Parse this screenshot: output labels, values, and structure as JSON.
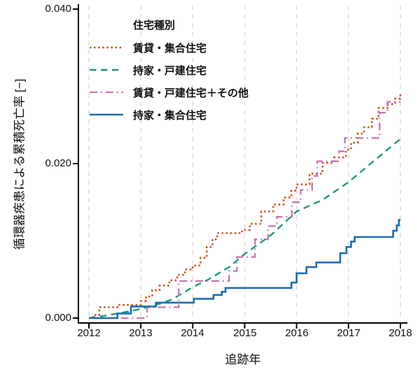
{
  "figure": {
    "background": "#ffffff",
    "axis_color": "#000000",
    "gridline_color": "#d9d9d9"
  },
  "chart_data": {
    "type": "line",
    "subtype": "cumulative-incidence-step",
    "title": "",
    "xlabel": "追跡年",
    "ylabel": "循環器疾患による累積死亡率 [−]",
    "xlim": [
      2012,
      2018
    ],
    "ylim": [
      0,
      0.04
    ],
    "xticks": [
      "2012",
      "2013",
      "2014",
      "2015",
      "2016",
      "2017",
      "2018"
    ],
    "xtick_values": [
      2012,
      2013,
      2014,
      2015,
      2016,
      2017,
      2018
    ],
    "yticks": [
      "0.000",
      "0.020",
      "0.040"
    ],
    "ytick_values": [
      0,
      0.02,
      0.04
    ],
    "grid": "vertical dashed gridlines at each year",
    "legend": {
      "title": "住宅種別",
      "position": "top-left-inside"
    },
    "series": [
      {
        "name": "賃貸・集合住宅",
        "color": "#d2521e",
        "style": "dotted",
        "mode": "step",
        "points": [
          [
            2012.0,
            0.0
          ],
          [
            2012.08,
            0.0004
          ],
          [
            2012.2,
            0.0014
          ],
          [
            2012.55,
            0.0017
          ],
          [
            2013.0,
            0.0022
          ],
          [
            2013.1,
            0.0028
          ],
          [
            2013.22,
            0.0036
          ],
          [
            2013.36,
            0.0042
          ],
          [
            2013.55,
            0.0049
          ],
          [
            2013.7,
            0.0056
          ],
          [
            2013.85,
            0.0063
          ],
          [
            2014.0,
            0.0068
          ],
          [
            2014.15,
            0.0078
          ],
          [
            2014.27,
            0.0092
          ],
          [
            2014.38,
            0.0102
          ],
          [
            2014.47,
            0.011
          ],
          [
            2014.95,
            0.0114
          ],
          [
            2015.1,
            0.0122
          ],
          [
            2015.32,
            0.0138
          ],
          [
            2015.55,
            0.0147
          ],
          [
            2015.75,
            0.0156
          ],
          [
            2015.9,
            0.0165
          ],
          [
            2016.0,
            0.0173
          ],
          [
            2016.25,
            0.0187
          ],
          [
            2016.5,
            0.0201
          ],
          [
            2016.72,
            0.0208
          ],
          [
            2016.95,
            0.0218
          ],
          [
            2017.05,
            0.0227
          ],
          [
            2017.18,
            0.0239
          ],
          [
            2017.3,
            0.0247
          ],
          [
            2017.45,
            0.0258
          ],
          [
            2017.58,
            0.0272
          ],
          [
            2017.75,
            0.0277
          ],
          [
            2017.9,
            0.0284
          ],
          [
            2018.0,
            0.029
          ]
        ]
      },
      {
        "name": "持家・戸建住宅",
        "color": "#1b9e77",
        "style": "dashed",
        "mode": "linear",
        "points": [
          [
            2012.0,
            0.0
          ],
          [
            2012.3,
            0.0003
          ],
          [
            2012.8,
            0.0009
          ],
          [
            2013.2,
            0.0015
          ],
          [
            2013.6,
            0.0024
          ],
          [
            2014.0,
            0.004
          ],
          [
            2014.3,
            0.005
          ],
          [
            2014.7,
            0.0066
          ],
          [
            2015.0,
            0.0083
          ],
          [
            2015.5,
            0.0107
          ],
          [
            2016.0,
            0.0138
          ],
          [
            2016.5,
            0.0153
          ],
          [
            2017.0,
            0.0176
          ],
          [
            2017.5,
            0.0204
          ],
          [
            2018.0,
            0.0232
          ]
        ]
      },
      {
        "name": "賃貸・戸建住宅＋その他",
        "color": "#c974ae",
        "style": "dashdot",
        "mode": "step",
        "points": [
          [
            2012.0,
            0.0
          ],
          [
            2013.12,
            0.0014
          ],
          [
            2013.73,
            0.0048
          ],
          [
            2014.7,
            0.0061
          ],
          [
            2014.85,
            0.0079
          ],
          [
            2015.2,
            0.0102
          ],
          [
            2015.45,
            0.0119
          ],
          [
            2015.62,
            0.0131
          ],
          [
            2015.91,
            0.015
          ],
          [
            2016.08,
            0.0166
          ],
          [
            2016.3,
            0.0184
          ],
          [
            2016.4,
            0.0203
          ],
          [
            2016.82,
            0.0216
          ],
          [
            2016.93,
            0.0233
          ],
          [
            2017.6,
            0.0266
          ],
          [
            2017.75,
            0.028
          ],
          [
            2018.0,
            0.028
          ]
        ]
      },
      {
        "name": "持家・集合住宅",
        "color": "#1d6cb5",
        "style": "solid",
        "mode": "step",
        "points": [
          [
            2012.0,
            0.0
          ],
          [
            2012.55,
            0.0006
          ],
          [
            2012.81,
            0.0015
          ],
          [
            2013.29,
            0.002
          ],
          [
            2014.02,
            0.0025
          ],
          [
            2014.4,
            0.003
          ],
          [
            2014.56,
            0.0034
          ],
          [
            2014.63,
            0.0039
          ],
          [
            2015.9,
            0.0046
          ],
          [
            2016.0,
            0.0058
          ],
          [
            2016.19,
            0.0066
          ],
          [
            2016.38,
            0.0072
          ],
          [
            2016.84,
            0.0084
          ],
          [
            2016.96,
            0.0092
          ],
          [
            2017.05,
            0.0099
          ],
          [
            2017.12,
            0.0105
          ],
          [
            2017.86,
            0.0113
          ],
          [
            2017.93,
            0.012
          ],
          [
            2017.97,
            0.0127
          ],
          [
            2018.0,
            0.0127
          ]
        ]
      }
    ]
  }
}
